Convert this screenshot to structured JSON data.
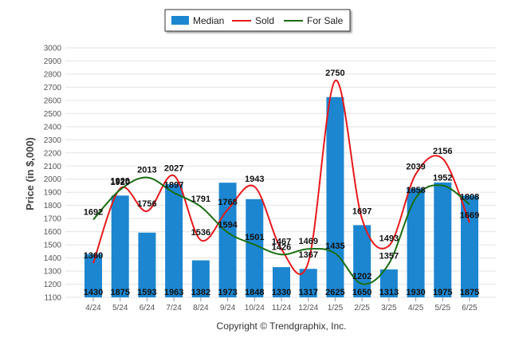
{
  "chart_data": {
    "type": "bar",
    "ylabel": "Price (in $,000)",
    "ylim": [
      1100,
      3000
    ],
    "yticks": [
      1100,
      1200,
      1300,
      1400,
      1500,
      1600,
      1700,
      1800,
      1900,
      2000,
      2100,
      2200,
      2300,
      2400,
      2500,
      2600,
      2700,
      2800,
      2900,
      3000
    ],
    "grid": true,
    "legend_position": "top-center",
    "categories": [
      "4/24",
      "5/24",
      "6/24",
      "7/24",
      "8/24",
      "9/24",
      "10/24",
      "11/24",
      "12/24",
      "1/25",
      "2/25",
      "3/25",
      "4/25",
      "5/25",
      "6/25"
    ],
    "series": [
      {
        "name": "Median",
        "kind": "bar",
        "color": "#1c86d0",
        "values": [
          1430,
          1875,
          1593,
          1963,
          1382,
          1973,
          1848,
          1330,
          1317,
          2625,
          1650,
          1313,
          1930,
          1975,
          1875
        ]
      },
      {
        "name": "Sold",
        "kind": "line",
        "color": "#e8191c",
        "values": [
          1360,
          1929,
          1756,
          2027,
          1536,
          1768,
          1943,
          1467,
          1367,
          2750,
          1697,
          1493,
          2039,
          2156,
          1669
        ]
      },
      {
        "name": "For Sale",
        "kind": "line",
        "color": "#1a6e12",
        "values": [
          1692,
          1920,
          2013,
          1897,
          1791,
          1594,
          1501,
          1426,
          1469,
          1435,
          1202,
          1357,
          1858,
          1952,
          1808
        ]
      }
    ]
  },
  "footer": {
    "copyright": "Copyright © Trendgraphix, Inc."
  }
}
